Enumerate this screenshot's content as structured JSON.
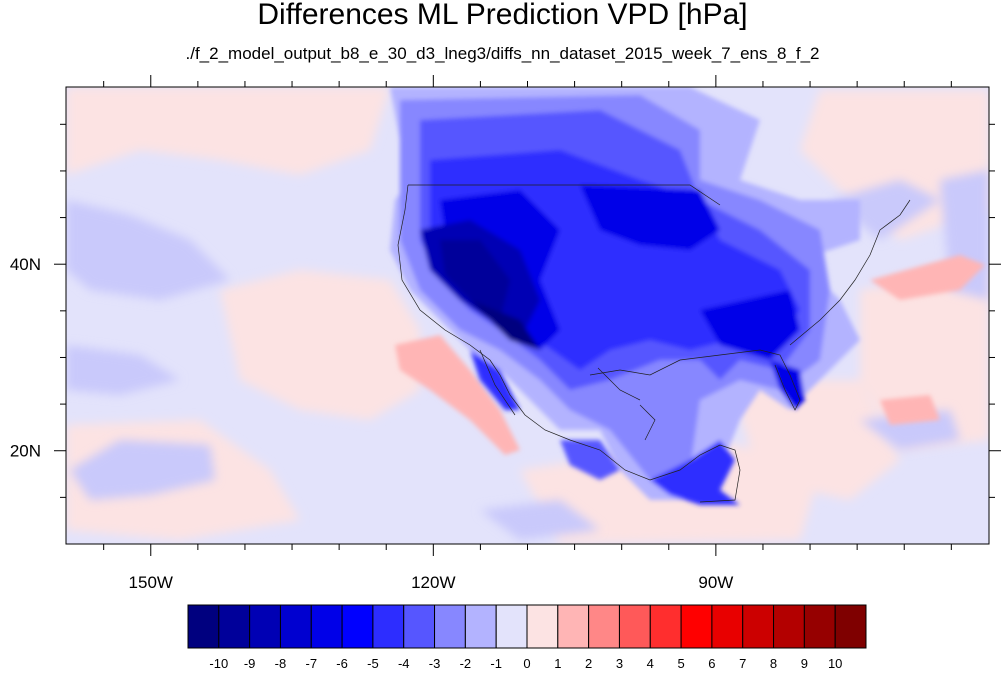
{
  "title": "Differences ML Prediction VPD [hPa]",
  "subtitle": "./f_2_model_output_b8_e_30_d3_lneg3/diffs_nn_dataset_2015_week_7_ens_8_f_2",
  "map": {
    "lon_range": [
      -159,
      -61
    ],
    "lat_range": [
      10,
      59
    ],
    "x_tick_labels": [
      {
        "lon": -150,
        "label": "150W"
      },
      {
        "lon": -120,
        "label": "120W"
      },
      {
        "lon": -90,
        "label": "90W"
      }
    ],
    "y_tick_labels": [
      {
        "lat": 40,
        "label": "40N"
      },
      {
        "lat": 20,
        "label": "20N"
      }
    ]
  },
  "colorbar": {
    "labels": [
      "-10",
      "-9",
      "-8",
      "-7",
      "-6",
      "-5",
      "-4",
      "-3",
      "-2",
      "-1",
      "0",
      "1",
      "2",
      "3",
      "4",
      "5",
      "6",
      "7",
      "8",
      "9",
      "10"
    ],
    "colors": [
      "#00007f",
      "#00009a",
      "#0000b4",
      "#0000d0",
      "#0000e8",
      "#0000ff",
      "#2d2dff",
      "#5656ff",
      "#8787ff",
      "#b3b3ff",
      "#e3e3fb",
      "#fce3e3",
      "#ffb5b5",
      "#ff8787",
      "#ff5959",
      "#ff2e2e",
      "#ff0000",
      "#e80000",
      "#cc0000",
      "#b30000",
      "#960000",
      "#7f0000"
    ]
  }
}
